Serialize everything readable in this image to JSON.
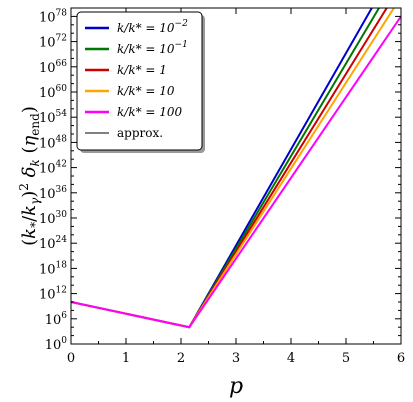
{
  "chart_data": {
    "type": "line",
    "xlabel": "p",
    "ylabel": "(k*/kγ)² δk (ηend)",
    "xlim": [
      0,
      6
    ],
    "ylim_log10": [
      0,
      80
    ],
    "yscale": "log",
    "x_ticks": [
      "0",
      "1",
      "2",
      "3",
      "4",
      "5",
      "6"
    ],
    "y_tick_exponents": [
      "0",
      "6",
      "12",
      "18",
      "24",
      "30",
      "36",
      "42",
      "48",
      "54",
      "60",
      "66",
      "72",
      "78"
    ],
    "y_tick_base": "10",
    "legend_position": "top-left",
    "series": [
      {
        "name": "k/k* = 10⁻²",
        "label_main": "k/k* = 10",
        "label_sup": "−2",
        "color": "#0000cc",
        "x": [
          0,
          2.15,
          5.47
        ],
        "log10_y": [
          10,
          4,
          80
        ]
      },
      {
        "name": "k/k* = 10⁻¹",
        "label_main": "k/k* = 10",
        "label_sup": "−1",
        "color": "#007700",
        "x": [
          0,
          2.15,
          5.6
        ],
        "log10_y": [
          10,
          4,
          80
        ]
      },
      {
        "name": "k/k* = 1",
        "label_main": "k/k* = 1",
        "label_sup": "",
        "color": "#cc0000",
        "x": [
          0,
          2.15,
          5.74
        ],
        "log10_y": [
          10,
          4,
          80
        ]
      },
      {
        "name": "k/k* = 10",
        "label_main": "k/k* = 10",
        "label_sup": "",
        "color": "#ffa500",
        "x": [
          0,
          2.15,
          5.87
        ],
        "log10_y": [
          10,
          4,
          80
        ]
      },
      {
        "name": "k/k* = 100",
        "label_main": "k/k* = 100",
        "label_sup": "",
        "color": "#ff00ff",
        "x": [
          0,
          2.15,
          6.0
        ],
        "log10_y": [
          10,
          4,
          78
        ]
      },
      {
        "name": "approx.",
        "label_main": "approx.",
        "label_sup": "",
        "color": "#000000",
        "x": [],
        "log10_y": []
      }
    ]
  }
}
